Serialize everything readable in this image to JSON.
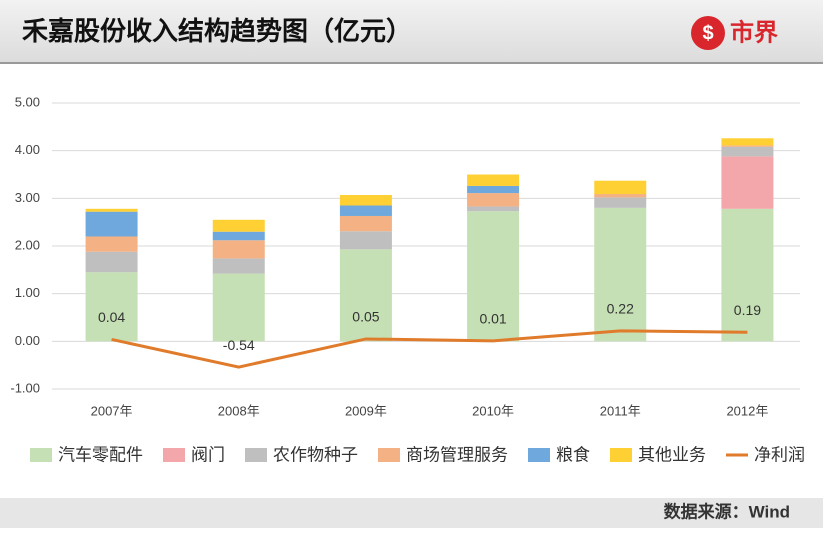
{
  "chart_data": {
    "type": "bar",
    "stacked": true,
    "title": "禾嘉股份收入结构趋势图（亿元）",
    "logo": "市界",
    "source": "数据来源：Wind",
    "categories": [
      "2007年",
      "2008年",
      "2009年",
      "2010年",
      "2011年",
      "2012年"
    ],
    "series": [
      {
        "name": "汽车零配件",
        "color": "#c5e0b4",
        "values": [
          1.45,
          1.42,
          1.93,
          2.73,
          2.8,
          2.78
        ]
      },
      {
        "name": "阀门",
        "color": "#f4a7ab",
        "values": [
          0,
          0,
          0,
          0,
          0,
          1.1
        ]
      },
      {
        "name": "农作物种子",
        "color": "#bfbfbf",
        "values": [
          0.43,
          0.32,
          0.38,
          0.1,
          0.22,
          0.2
        ]
      },
      {
        "name": "商场管理服务",
        "color": "#f4b183",
        "values": [
          0.32,
          0.38,
          0.32,
          0.28,
          0.07,
          0.03
        ]
      },
      {
        "name": "粮食",
        "color": "#6fa8dc",
        "values": [
          0.52,
          0.18,
          0.22,
          0.15,
          0,
          0
        ]
      },
      {
        "name": "其他业务",
        "color": "#ffd033",
        "values": [
          0.06,
          0.25,
          0.22,
          0.24,
          0.28,
          0.15
        ]
      },
      {
        "name": "净利润",
        "type": "line",
        "color": "#e07b2c",
        "values": [
          0.04,
          -0.54,
          0.05,
          0.01,
          0.22,
          0.19
        ]
      }
    ],
    "ylim": [
      -1,
      5
    ],
    "yticks": [
      {
        "value": -1,
        "label": "-1.00"
      },
      {
        "value": 0,
        "label": "0.00"
      },
      {
        "value": 1,
        "label": "1.00"
      },
      {
        "value": 2,
        "label": "2.00"
      },
      {
        "value": 3,
        "label": "3.00"
      },
      {
        "value": 4,
        "label": "4.00"
      },
      {
        "value": 5,
        "label": "5.00"
      }
    ],
    "grid": true
  }
}
